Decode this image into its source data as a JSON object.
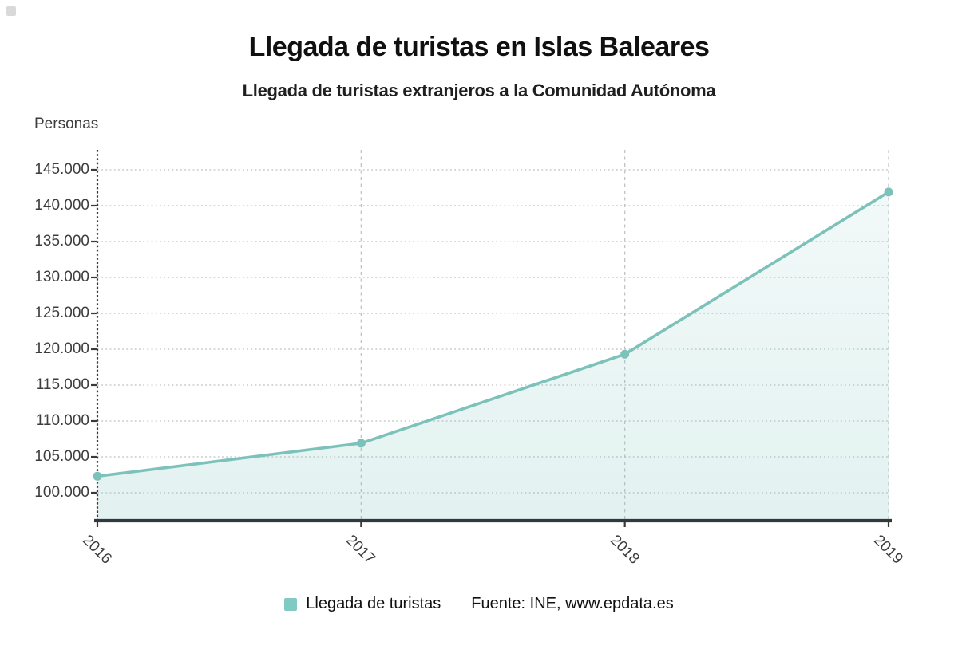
{
  "header": {
    "title": "Llegada de turistas en Islas Baleares",
    "subtitle": "Llegada de turistas extranjeros a la Comunidad Autónoma"
  },
  "chart_data": {
    "type": "line",
    "title": "Llegada de turistas en Islas Baleares",
    "subtitle": "Llegada de turistas extranjeros a la Comunidad Autónoma",
    "ylabel": "Personas",
    "xlabel": "",
    "categories": [
      "2016",
      "2017",
      "2018",
      "2019"
    ],
    "series": [
      {
        "name": "Llegada de turistas",
        "values": [
          102300,
          106900,
          119300,
          141900
        ]
      }
    ],
    "ylim": [
      100000,
      145000
    ],
    "ytick_step": 5000,
    "ytick_labels": [
      "145.000",
      "140.000",
      "135.000",
      "130.000",
      "125.000",
      "120.000",
      "115.000",
      "110.000",
      "105.000",
      "100.000"
    ],
    "grid": true,
    "legend_position": "bottom",
    "colors": {
      "line": "#7cc2ba",
      "marker": "#7cc2ba",
      "area_top": "rgba(125,196,188,0.10)",
      "area_bottom": "rgba(125,196,188,0.22)",
      "hgrid": "#c9c9c9",
      "vgrid": "#c3c3c3",
      "axis": "#32383e",
      "tick": "#3a3a3a",
      "label_text": "#3d3d3d"
    }
  },
  "legend": {
    "swatch_color": "#7fcbc3",
    "label": "Llegada de turistas"
  },
  "source": {
    "label": "Fuente: INE, www.epdata.es"
  }
}
